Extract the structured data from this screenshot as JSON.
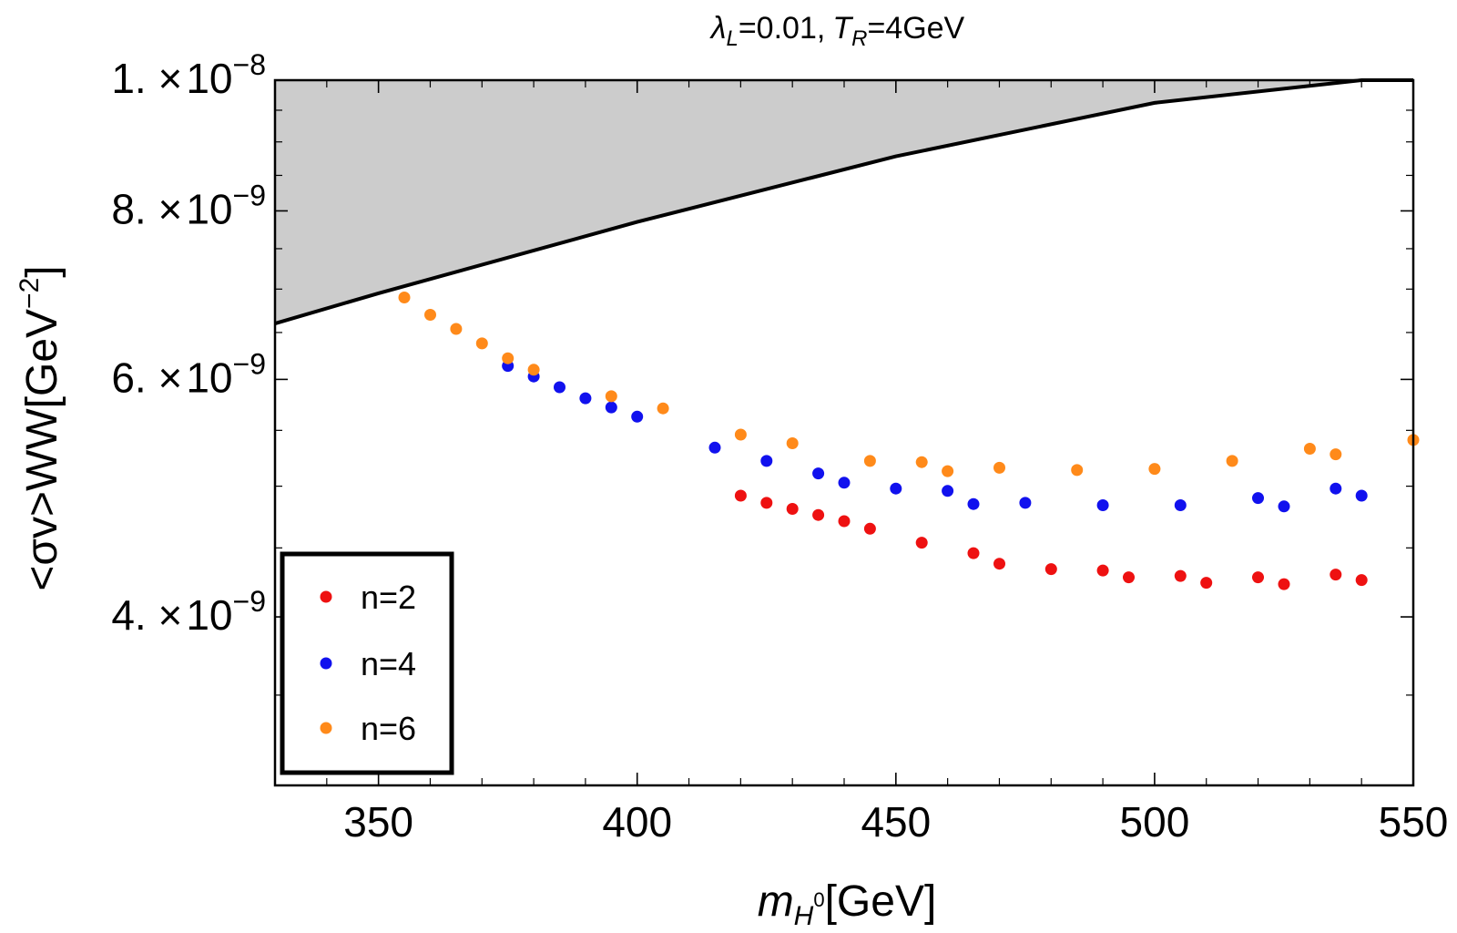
{
  "chart_data": {
    "type": "scatter",
    "title": "λL=0.01, TR=4GeV",
    "title_parts": {
      "lambda": "λ",
      "lambda_sub": "L",
      "lambda_val": "=0.01,",
      "t": "T",
      "t_sub": "R",
      "t_val": "=4GeV"
    },
    "xlabel": "mH0[GeV]",
    "xlabel_parts": {
      "m": "m",
      "sub_h": "H",
      "sup_0": "0",
      "unit": "[GeV]"
    },
    "ylabel": "<σv>WW[GeV^-2]",
    "ylabel_parts": {
      "main": "<σv>",
      "sub": "WW",
      "unit": "[GeV",
      "exp": "−2",
      "close": "]"
    },
    "xlim": [
      330,
      550
    ],
    "ylim": [
      3e-09,
      1e-08
    ],
    "yscale": "log",
    "x_ticks": [
      {
        "value": 350,
        "label": "350"
      },
      {
        "value": 400,
        "label": "400"
      },
      {
        "value": 450,
        "label": "450"
      },
      {
        "value": 500,
        "label": "500"
      },
      {
        "value": 550,
        "label": "550"
      }
    ],
    "y_ticks": [
      {
        "value": 4e-09,
        "mantissa": "4.",
        "times": "×",
        "base": "10",
        "exp": "−9"
      },
      {
        "value": 6e-09,
        "mantissa": "6.",
        "times": "×",
        "base": "10",
        "exp": "−9"
      },
      {
        "value": 8e-09,
        "mantissa": "8.",
        "times": "×",
        "base": "10",
        "exp": "−9"
      },
      {
        "value": 1e-08,
        "mantissa": "1.",
        "times": "×",
        "base": "10",
        "exp": "−8"
      }
    ],
    "y_minor_ticks": [
      3.5e-09,
      4.5e-09,
      5e-09,
      5.5e-09,
      6.5e-09,
      7e-09,
      7.5e-09,
      8.5e-09,
      9e-09,
      9.5e-09
    ],
    "x_minor_ticks": [
      340,
      360,
      370,
      380,
      390,
      410,
      420,
      430,
      440,
      460,
      470,
      480,
      490,
      510,
      520,
      530,
      540
    ],
    "bound_line": {
      "points": [
        [
          330,
          6.6e-09
        ],
        [
          350,
          6.95e-09
        ],
        [
          400,
          7.85e-09
        ],
        [
          450,
          8.78e-09
        ],
        [
          500,
          9.62e-09
        ],
        [
          540,
          1e-08
        ],
        [
          550,
          1e-08
        ]
      ],
      "shade_color": "#cccccc",
      "line_color": "#000000"
    },
    "legend": {
      "position": "bottom-left",
      "entries": [
        {
          "label": "n=2",
          "color": "#ee1111"
        },
        {
          "label": "n=4",
          "color": "#1111ee"
        },
        {
          "label": "n=6",
          "color": "#ff8a1a"
        }
      ]
    },
    "series": [
      {
        "name": "n=2",
        "color": "#ee1111",
        "points": [
          [
            420,
            4.92e-09
          ],
          [
            425,
            4.86e-09
          ],
          [
            430,
            4.81e-09
          ],
          [
            435,
            4.76e-09
          ],
          [
            440,
            4.71e-09
          ],
          [
            445,
            4.65e-09
          ],
          [
            455,
            4.54e-09
          ],
          [
            465,
            4.46e-09
          ],
          [
            470,
            4.38e-09
          ],
          [
            480,
            4.34e-09
          ],
          [
            490,
            4.33e-09
          ],
          [
            495,
            4.28e-09
          ],
          [
            505,
            4.29e-09
          ],
          [
            510,
            4.24e-09
          ],
          [
            520,
            4.28e-09
          ],
          [
            525,
            4.23e-09
          ],
          [
            535,
            4.3e-09
          ],
          [
            540,
            4.26e-09
          ]
        ]
      },
      {
        "name": "n=4",
        "color": "#1111ee",
        "points": [
          [
            375,
            6.14e-09
          ],
          [
            380,
            6.03e-09
          ],
          [
            385,
            5.92e-09
          ],
          [
            390,
            5.81e-09
          ],
          [
            395,
            5.72e-09
          ],
          [
            400,
            5.63e-09
          ],
          [
            415,
            5.34e-09
          ],
          [
            425,
            5.22e-09
          ],
          [
            435,
            5.11e-09
          ],
          [
            440,
            5.03e-09
          ],
          [
            450,
            4.98e-09
          ],
          [
            460,
            4.96e-09
          ],
          [
            465,
            4.85e-09
          ],
          [
            475,
            4.86e-09
          ],
          [
            490,
            4.84e-09
          ],
          [
            505,
            4.84e-09
          ],
          [
            520,
            4.9e-09
          ],
          [
            525,
            4.83e-09
          ],
          [
            535,
            4.98e-09
          ],
          [
            540,
            4.92e-09
          ]
        ]
      },
      {
        "name": "n=6",
        "color": "#ff8a1a",
        "points": [
          [
            355,
            6.9e-09
          ],
          [
            360,
            6.7e-09
          ],
          [
            365,
            6.54e-09
          ],
          [
            370,
            6.38e-09
          ],
          [
            375,
            6.22e-09
          ],
          [
            380,
            6.1e-09
          ],
          [
            395,
            5.83e-09
          ],
          [
            405,
            5.71e-09
          ],
          [
            420,
            5.46e-09
          ],
          [
            430,
            5.38e-09
          ],
          [
            445,
            5.22e-09
          ],
          [
            455,
            5.21e-09
          ],
          [
            460,
            5.13e-09
          ],
          [
            470,
            5.16e-09
          ],
          [
            485,
            5.14e-09
          ],
          [
            500,
            5.15e-09
          ],
          [
            515,
            5.22e-09
          ],
          [
            530,
            5.33e-09
          ],
          [
            535,
            5.28e-09
          ],
          [
            550,
            5.41e-09
          ]
        ]
      }
    ]
  }
}
